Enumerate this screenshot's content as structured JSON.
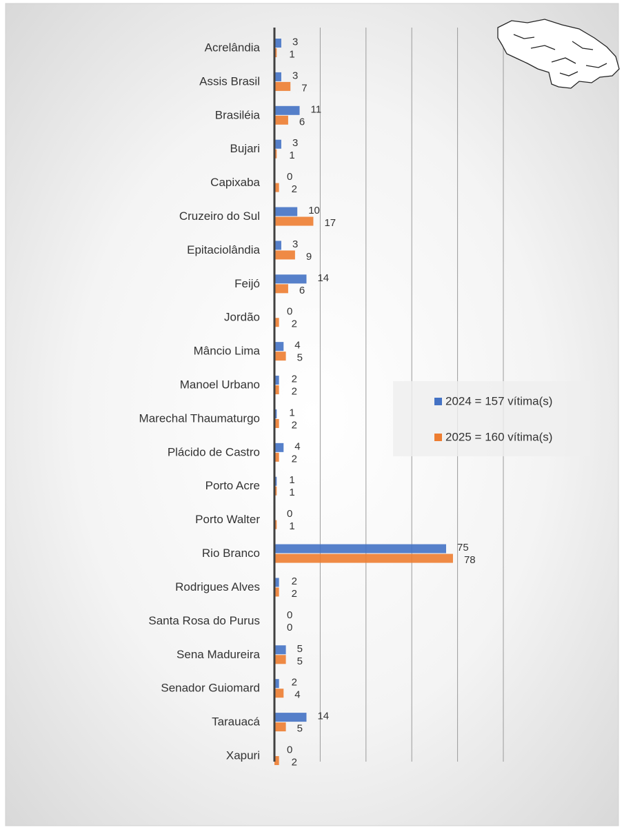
{
  "chart_data": {
    "type": "bar",
    "orientation": "horizontal",
    "categories": [
      "Acrelândia",
      "Assis Brasil",
      "Brasiléia",
      "Bujari",
      "Capixaba",
      "Cruzeiro do Sul",
      "Epitaciolândia",
      "Feijó",
      "Jordão",
      "Mâncio Lima",
      "Manoel Urbano",
      "Marechal Thaumaturgo",
      "Plácido de Castro",
      "Porto Acre",
      "Porto Walter",
      "Rio Branco",
      "Rodrigues Alves",
      "Santa Rosa do Purus",
      "Sena Madureira",
      "Senador Guiomard",
      "Tarauacá",
      "Xapuri"
    ],
    "series": [
      {
        "name": "2024 = 157 vítima(s)",
        "color": "#4472c4",
        "values": [
          3,
          3,
          11,
          3,
          0,
          10,
          3,
          14,
          0,
          4,
          2,
          1,
          4,
          1,
          0,
          75,
          2,
          0,
          5,
          2,
          14,
          0
        ]
      },
      {
        "name": "2025 = 160 vítima(s)",
        "color": "#ed7d31",
        "values": [
          1,
          7,
          6,
          1,
          2,
          17,
          9,
          6,
          2,
          5,
          2,
          2,
          2,
          1,
          1,
          78,
          2,
          0,
          5,
          4,
          5,
          2
        ]
      }
    ],
    "xlim": [
      0,
      100
    ],
    "xticks": [
      0,
      20,
      40,
      60,
      80,
      100
    ],
    "grid": true
  }
}
